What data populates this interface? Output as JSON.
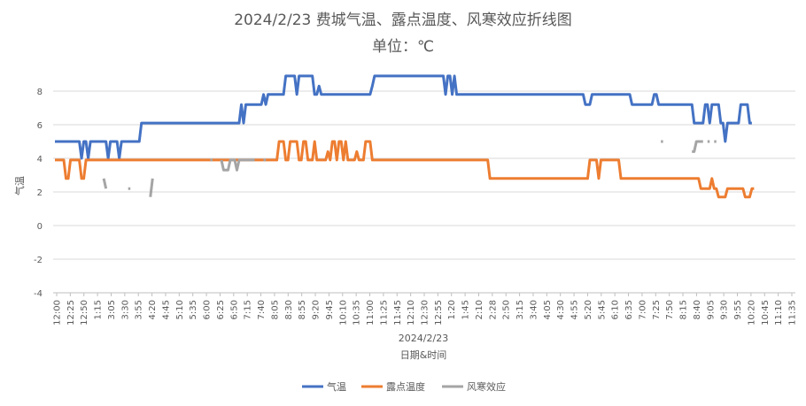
{
  "chart_data": {
    "type": "line",
    "title": "2024/2/23 费城气温、露点温度、风寒效应折线图",
    "subtitle": "单位：℃",
    "xlabel": "日期&时间",
    "x_group_label": "2024/2/23",
    "ylabel": "气温",
    "ylim": [
      -4,
      9
    ],
    "yticks": [
      "8",
      "6",
      "4",
      "2",
      "0",
      "-2",
      "-4"
    ],
    "grid": true,
    "legend_position": "bottom",
    "x_tick_labels": [
      "12:00",
      "12:25",
      "12:50",
      "1:15",
      "3:05",
      "3:30",
      "3:55",
      "4:20",
      "4:45",
      "5:10",
      "5:35",
      "6:00",
      "6:25",
      "6:50",
      "7:15",
      "7:40",
      "8:05",
      "8:30",
      "8:55",
      "9:20",
      "9:45",
      "10:10",
      "10:35",
      "11:00",
      "11:25",
      "11:45",
      "12:10",
      "12:30",
      "12:55",
      "1:20",
      "1:45",
      "2:10",
      "2:28",
      "2:50",
      "3:15",
      "3:40",
      "4:05",
      "4:30",
      "4:55",
      "5:20",
      "5:45",
      "6:10",
      "6:35",
      "7:00",
      "7:25",
      "7:50",
      "8:15",
      "8:40",
      "9:05",
      "9:30",
      "9:55",
      "10:20",
      "10:45",
      "11:10",
      "11:35"
    ],
    "series": [
      {
        "name": "气温",
        "color": "#4472C4",
        "values": [
          5,
          5,
          5,
          5,
          5,
          5,
          5,
          5,
          5,
          5,
          5,
          5,
          4,
          5,
          5,
          4,
          5,
          5,
          5,
          5,
          5,
          5,
          5,
          5,
          4,
          5,
          5,
          5,
          5,
          4,
          5,
          5,
          5,
          5,
          5,
          5,
          5,
          5,
          5,
          6.1,
          6.1,
          6.1,
          6.1,
          6.1,
          6.1,
          6.1,
          6.1,
          6.1,
          6.1,
          6.1,
          6.1,
          6.1,
          6.1,
          6.1,
          6.1,
          6.1,
          6.1,
          6.1,
          6.1,
          6.1,
          6.1,
          6.1,
          6.1,
          6.1,
          6.1,
          6.1,
          6.1,
          6.1,
          6.1,
          6.1,
          6.1,
          6.1,
          6.1,
          6.1,
          6.1,
          6.1,
          6.1,
          6.1,
          6.1,
          6.1,
          6.1,
          6.1,
          6.1,
          6.1,
          7.2,
          6.1,
          7.2,
          7.2,
          7.2,
          7.2,
          7.2,
          7.2,
          7.2,
          7.2,
          7.8,
          7.2,
          7.8,
          7.8,
          7.8,
          7.8,
          7.8,
          7.8,
          7.8,
          7.8,
          8.9,
          8.9,
          8.9,
          8.9,
          8.9,
          7.8,
          8.9,
          8.9,
          8.9,
          8.9,
          8.9,
          8.9,
          8.9,
          7.8,
          7.8,
          8.3,
          7.8,
          7.8,
          7.8,
          7.8,
          7.8,
          7.8,
          7.8,
          7.8,
          7.8,
          7.8,
          7.8,
          7.8,
          7.8,
          7.8,
          7.8,
          7.8,
          7.8,
          7.8,
          7.8,
          7.8,
          7.8,
          7.8,
          7.8,
          8.3,
          8.9,
          8.9,
          8.9,
          8.9,
          8.9,
          8.9,
          8.9,
          8.9,
          8.9,
          8.9,
          8.9,
          8.9,
          8.9,
          8.9,
          8.9,
          8.9,
          8.9,
          8.9,
          8.9,
          8.9,
          8.9,
          8.9,
          8.9,
          8.9,
          8.9,
          8.9,
          8.9,
          8.9,
          8.9,
          8.9,
          8.9,
          8.9,
          7.8,
          8.9,
          8.9,
          7.8,
          8.9,
          7.8,
          7.8,
          7.8,
          7.8,
          7.8,
          7.8,
          7.8,
          7.8,
          7.8,
          7.8,
          7.8,
          7.8,
          7.8,
          7.8,
          7.8,
          7.8,
          7.8,
          7.8,
          7.8,
          7.8,
          7.8,
          7.8,
          7.8,
          7.8,
          7.8,
          7.8,
          7.8,
          7.8,
          7.8,
          7.8,
          7.8,
          7.8,
          7.8,
          7.8,
          7.8,
          7.8,
          7.8,
          7.8,
          7.8,
          7.8,
          7.8,
          7.8,
          7.8,
          7.8,
          7.8,
          7.8,
          7.8,
          7.8,
          7.8,
          7.8,
          7.8,
          7.8,
          7.8,
          7.8,
          7.8,
          7.8,
          7.8,
          7.8,
          7.2,
          7.2,
          7.2,
          7.8,
          7.8,
          7.8,
          7.8,
          7.8,
          7.8,
          7.8,
          7.8,
          7.8,
          7.8,
          7.8,
          7.8,
          7.8,
          7.8,
          7.8,
          7.8,
          7.8,
          7.8,
          7.2,
          7.2,
          7.2,
          7.2,
          7.2,
          7.2,
          7.2,
          7.2,
          7.2,
          7.2,
          7.8,
          7.8,
          7.2,
          7.2,
          7.2,
          7.2,
          7.2,
          7.2,
          7.2,
          7.2,
          7.2,
          7.2,
          7.2,
          7.2,
          7.2,
          7.2,
          7.2,
          7.2,
          6.1,
          6.1,
          6.1,
          6.1,
          6.1,
          7.2,
          7.2,
          6.1,
          7.2,
          7.2,
          7.2,
          7.2,
          6.1,
          6.1,
          5,
          6.1,
          6.1,
          6.1,
          6.1,
          6.1,
          6.1,
          7.2,
          7.2,
          7.2,
          7.2,
          6.1,
          6.1
        ]
      },
      {
        "name": "露点温度",
        "color": "#ED7D31",
        "values": [
          3.9,
          3.9,
          3.9,
          3.9,
          3.9,
          2.8,
          2.8,
          3.9,
          3.9,
          3.9,
          3.9,
          3.9,
          2.8,
          2.8,
          3.9,
          3.9,
          3.9,
          3.9,
          3.9,
          3.9,
          3.9,
          3.9,
          3.9,
          3.9,
          3.9,
          3.9,
          3.9,
          3.9,
          3.9,
          3.9,
          3.9,
          3.9,
          3.9,
          3.9,
          3.9,
          3.9,
          3.9,
          3.9,
          3.9,
          3.9,
          3.9,
          3.9,
          3.9,
          3.9,
          3.9,
          3.9,
          3.9,
          3.9,
          3.9,
          3.9,
          3.9,
          3.9,
          3.9,
          3.9,
          3.9,
          3.9,
          3.9,
          3.9,
          3.9,
          3.9,
          3.9,
          3.9,
          3.9,
          3.9,
          3.9,
          3.9,
          3.9,
          3.9,
          3.9,
          3.9,
          3.9,
          3.9,
          3.9,
          3.9,
          3.9,
          3.9,
          3.9,
          3.9,
          3.9,
          3.9,
          3.9,
          3.9,
          3.9,
          3.9,
          3.9,
          3.9,
          3.9,
          3.9,
          3.9,
          3.9,
          3.9,
          3.9,
          3.9,
          3.9,
          3.9,
          3.9,
          3.9,
          3.9,
          3.9,
          3.9,
          3.9,
          5,
          5,
          5,
          3.9,
          3.9,
          5,
          5,
          5,
          5,
          3.9,
          3.9,
          5,
          5,
          3.9,
          3.9,
          3.9,
          5,
          3.9,
          3.9,
          3.9,
          3.9,
          3.9,
          4.4,
          3.9,
          5,
          5,
          3.9,
          5,
          5,
          3.9,
          5,
          3.9,
          3.9,
          3.9,
          3.9,
          4.4,
          3.9,
          3.9,
          3.9,
          5,
          5,
          5,
          3.9,
          3.9,
          3.9,
          3.9,
          3.9,
          3.9,
          3.9,
          3.9,
          3.9,
          3.9,
          3.9,
          3.9,
          3.9,
          3.9,
          3.9,
          3.9,
          3.9,
          3.9,
          3.9,
          3.9,
          3.9,
          3.9,
          3.9,
          3.9,
          3.9,
          3.9,
          3.9,
          3.9,
          3.9,
          3.9,
          3.9,
          3.9,
          3.9,
          3.9,
          3.9,
          3.9,
          3.9,
          3.9,
          3.9,
          3.9,
          3.9,
          3.9,
          3.9,
          3.9,
          3.9,
          3.9,
          3.9,
          3.9,
          3.9,
          3.9,
          3.9,
          3.9,
          3.9,
          2.8,
          2.8,
          2.8,
          2.8,
          2.8,
          2.8,
          2.8,
          2.8,
          2.8,
          2.8,
          2.8,
          2.8,
          2.8,
          2.8,
          2.8,
          2.8,
          2.8,
          2.8,
          2.8,
          2.8,
          2.8,
          2.8,
          2.8,
          2.8,
          2.8,
          2.8,
          2.8,
          2.8,
          2.8,
          2.8,
          2.8,
          2.8,
          2.8,
          2.8,
          2.8,
          2.8,
          2.8,
          2.8,
          2.8,
          2.8,
          2.8,
          2.8,
          2.8,
          2.8,
          2.8,
          3.9,
          3.9,
          3.9,
          3.9,
          2.8,
          3.9,
          3.9,
          3.9,
          3.9,
          3.9,
          3.9,
          3.9,
          3.9,
          3.9,
          2.8,
          2.8,
          2.8,
          2.8,
          2.8,
          2.8,
          2.8,
          2.8,
          2.8,
          2.8,
          2.8,
          2.8,
          2.8,
          2.8,
          2.8,
          2.8,
          2.8,
          2.8,
          2.8,
          2.8,
          2.8,
          2.8,
          2.8,
          2.8,
          2.8,
          2.8,
          2.8,
          2.8,
          2.8,
          2.8,
          2.8,
          2.8,
          2.8,
          2.8,
          2.8,
          2.8,
          2.2,
          2.2,
          2.2,
          2.2,
          2.2,
          2.8,
          2.2,
          2.2,
          1.7,
          1.7,
          1.7,
          1.7,
          2.2,
          2.2,
          2.2,
          2.2,
          2.2,
          2.2,
          2.2,
          2.2,
          1.7,
          1.7,
          1.7,
          2.2,
          2.2
        ]
      },
      {
        "name": "风寒效应",
        "color": "#A5A5A5",
        "values": [
          null,
          null,
          null,
          null,
          null,
          null,
          null,
          null,
          null,
          null,
          null,
          null,
          null,
          null,
          null,
          null,
          null,
          null,
          null,
          null,
          null,
          null,
          2.8,
          2.2,
          null,
          null,
          null,
          null,
          null,
          null,
          null,
          null,
          null,
          2.2,
          2.2,
          null,
          null,
          null,
          null,
          null,
          null,
          null,
          null,
          1.7,
          2.8,
          null,
          null,
          null,
          null,
          null,
          null,
          null,
          null,
          null,
          null,
          null,
          null,
          null,
          null,
          null,
          null,
          null,
          null,
          null,
          null,
          null,
          null,
          null,
          null,
          null,
          3.9,
          3.9,
          null,
          null,
          null,
          3.9,
          3.3,
          3.3,
          3.3,
          3.9,
          3.9,
          3.9,
          3.3,
          3.9,
          3.9,
          3.9,
          3.9,
          3.9,
          3.9,
          3.9,
          3.9,
          null,
          null,
          null,
          3.9,
          3.9,
          null,
          null,
          null,
          null,
          null,
          null,
          null,
          null,
          null,
          null,
          null,
          null,
          null,
          null,
          null,
          null,
          null,
          null,
          null,
          null,
          null,
          null,
          null,
          null,
          null,
          null,
          null,
          null,
          null,
          null,
          null,
          null,
          null,
          null,
          null,
          null,
          null,
          null,
          null,
          null,
          null,
          null,
          null,
          null,
          null,
          null,
          null,
          null,
          null,
          null,
          null,
          null,
          null,
          null,
          null,
          null,
          null,
          null,
          null,
          null,
          null,
          null,
          null,
          null,
          null,
          null,
          null,
          null,
          null,
          null,
          null,
          null,
          null,
          null,
          null,
          null,
          null,
          null,
          null,
          null,
          null,
          null,
          null,
          null,
          null,
          null,
          null,
          null,
          null,
          null,
          null,
          null,
          null,
          null,
          null,
          null,
          null,
          null,
          null,
          null,
          null,
          null,
          null,
          null,
          null,
          null,
          null,
          null,
          null,
          null,
          null,
          null,
          null,
          null,
          null,
          null,
          null,
          null,
          null,
          null,
          null,
          null,
          null,
          null,
          null,
          null,
          null,
          null,
          null,
          null,
          null,
          null,
          null,
          null,
          null,
          null,
          null,
          null,
          null,
          null,
          null,
          null,
          null,
          null,
          null,
          null,
          null,
          null,
          null,
          null,
          null,
          null,
          null,
          null,
          null,
          null,
          null,
          null,
          null,
          null,
          null,
          null,
          null,
          null,
          null,
          null,
          null,
          null,
          null,
          null,
          null,
          null,
          null,
          null,
          null,
          null,
          null,
          5,
          5,
          null,
          null,
          null,
          null,
          null,
          null,
          null,
          null,
          null,
          null,
          null,
          null,
          4.4,
          4.4,
          5,
          5,
          5,
          5,
          null,
          5,
          5,
          null,
          5,
          5,
          null,
          null,
          null,
          null,
          null,
          null,
          null,
          null,
          null,
          null,
          null,
          null,
          null,
          null,
          null,
          null,
          null,
          null,
          null,
          null,
          null,
          null,
          null,
          null,
          null,
          null,
          null,
          null,
          null,
          null,
          null,
          null,
          null,
          null
        ]
      }
    ]
  }
}
